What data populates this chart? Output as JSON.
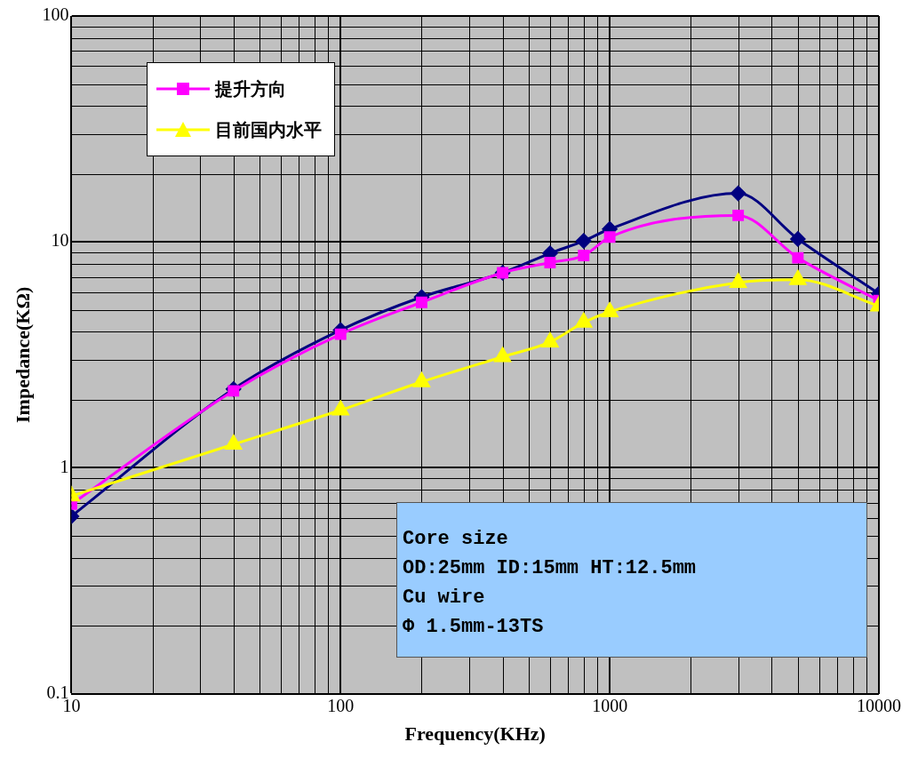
{
  "chart_data": {
    "type": "line",
    "xlabel": "Frequency(KHz)",
    "ylabel": "Impedance(KΩ)",
    "log": "xy",
    "xlim": [
      10,
      10000
    ],
    "ylim": [
      0.1,
      100
    ],
    "xticks": [
      10,
      100,
      1000,
      10000
    ],
    "yticks": [
      0.1,
      1,
      10,
      100
    ],
    "grid": true,
    "legend": "top left",
    "line_style": "solid",
    "x": [
      10,
      40,
      100,
      200,
      400,
      600,
      800,
      1000,
      3000,
      5000,
      10000
    ],
    "series": [
      {
        "color": "#000080",
        "marker": "diamond",
        "values": [
          0.61,
          2.23,
          4.07,
          5.7,
          7.3,
          8.9,
          10.1,
          11.4,
          16.4,
          10.3,
          5.9
        ]
      },
      {
        "name": "提升方向",
        "color": "#ff00ff",
        "marker": "square",
        "values": [
          0.69,
          2.19,
          3.9,
          5.4,
          7.3,
          8.1,
          8.7,
          10.5,
          13.1,
          8.5,
          5.5
        ]
      },
      {
        "name": "目前国内水平",
        "color": "#ffff00",
        "marker": "triangle",
        "values": [
          0.75,
          1.27,
          1.8,
          2.4,
          3.1,
          3.6,
          4.4,
          4.9,
          6.6,
          6.8,
          5.2
        ]
      }
    ],
    "annotations": [
      "Core size",
      "OD:25mm ID:15mm HT:12.5mm",
      "Cu wire",
      "Φ 1.5mm-13TS"
    ]
  }
}
